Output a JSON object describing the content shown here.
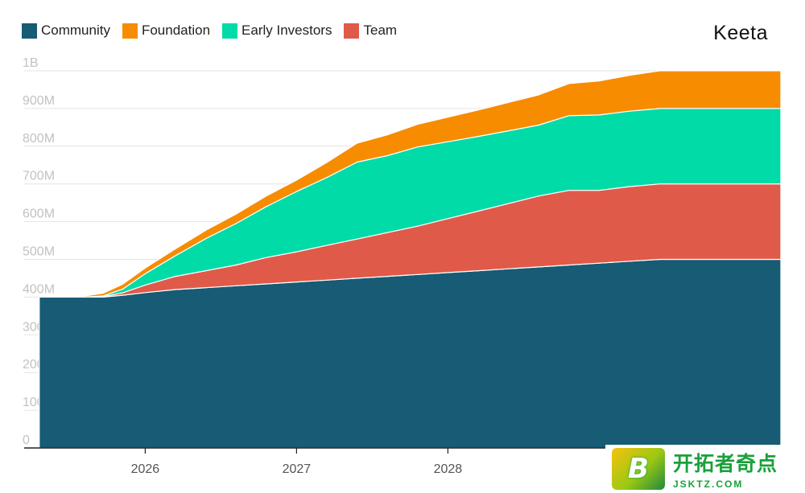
{
  "brand": "Keeta",
  "legend": [
    {
      "label": "Community",
      "color": "#175b75"
    },
    {
      "label": "Foundation",
      "color": "#f78c00"
    },
    {
      "label": "Early Investors",
      "color": "#00dba8"
    },
    {
      "label": "Team",
      "color": "#e05a4a"
    }
  ],
  "watermark": {
    "text_cn": "开拓者奇点",
    "url": "JSKTZ.COM",
    "logo_letter": "B"
  },
  "chart_data": {
    "type": "area",
    "stacked": true,
    "title": "",
    "xlabel": "",
    "ylabel": "",
    "ylim": [
      0,
      1000000000
    ],
    "xlim": [
      2025.2,
      2030.2
    ],
    "y_ticks": [
      {
        "value": 0,
        "label": "0"
      },
      {
        "value": 100000000,
        "label": "100M"
      },
      {
        "value": 200000000,
        "label": "200M"
      },
      {
        "value": 300000000,
        "label": "300M"
      },
      {
        "value": 400000000,
        "label": "400M"
      },
      {
        "value": 500000000,
        "label": "500M"
      },
      {
        "value": 600000000,
        "label": "600M"
      },
      {
        "value": 700000000,
        "label": "700M"
      },
      {
        "value": 800000000,
        "label": "800M"
      },
      {
        "value": 900000000,
        "label": "900M"
      },
      {
        "value": 1000000000,
        "label": "1B"
      }
    ],
    "x_ticks": [
      {
        "value": 2026,
        "label": "2026"
      },
      {
        "value": 2027,
        "label": "2027"
      },
      {
        "value": 2028,
        "label": "2028"
      }
    ],
    "grid": true,
    "legend_position": "top-left",
    "x": [
      2025.3,
      2025.6,
      2025.72,
      2025.85,
      2026.0,
      2026.2,
      2026.4,
      2026.6,
      2026.8,
      2027.0,
      2027.2,
      2027.4,
      2027.6,
      2027.8,
      2028.0,
      2028.2,
      2028.4,
      2028.6,
      2028.8,
      2029.0,
      2029.2,
      2029.4,
      2029.6,
      2029.8,
      2030.0,
      2030.2
    ],
    "series": [
      {
        "name": "Community",
        "color": "#175b75",
        "values": [
          400,
          400,
          400,
          405,
          412,
          420,
          425,
          430,
          435,
          440,
          445,
          450,
          455,
          460,
          465,
          470,
          475,
          480,
          485,
          490,
          495,
          500,
          500,
          500,
          500,
          500
        ]
      },
      {
        "name": "Team",
        "color": "#e05a4a",
        "values": [
          0,
          0,
          1,
          6,
          20,
          35,
          45,
          55,
          70,
          80,
          92,
          104,
          116,
          128,
          143,
          158,
          173,
          188,
          198,
          193,
          198,
          200,
          200,
          200,
          200,
          200
        ]
      },
      {
        "name": "Early Investors",
        "color": "#00dba8",
        "values": [
          0,
          0,
          2,
          10,
          30,
          55,
          85,
          110,
          135,
          160,
          180,
          204,
          204,
          210,
          204,
          198,
          193,
          188,
          198,
          200,
          200,
          200,
          200,
          200,
          200,
          200
        ]
      },
      {
        "name": "Foundation",
        "color": "#f78c00",
        "values": [
          0,
          3,
          7,
          13,
          15,
          18,
          22,
          25,
          28,
          30,
          40,
          50,
          55,
          60,
          65,
          70,
          75,
          80,
          85,
          90,
          95,
          100,
          100,
          100,
          100,
          100
        ]
      }
    ],
    "value_unit": "M"
  }
}
